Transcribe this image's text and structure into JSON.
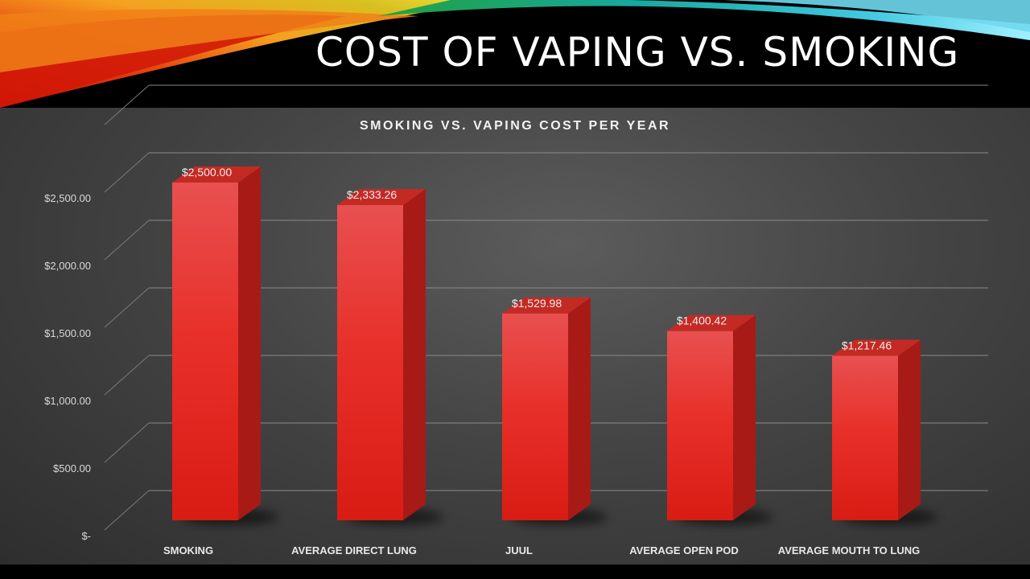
{
  "slide": {
    "title": "COST OF VAPING VS. SMOKING"
  },
  "colors": {
    "bar_front": "#e8302a",
    "bar_side": "#a81a16",
    "bar_top": "#c42a24",
    "panel": "#444444"
  },
  "chart_data": {
    "type": "bar",
    "title": "SMOKING VS. VAPING COST PER YEAR",
    "categories": [
      "SMOKING",
      "AVERAGE DIRECT LUNG",
      "JUUL",
      "AVERAGE OPEN POD",
      "AVERAGE MOUTH TO LUNG"
    ],
    "values": [
      2500.0,
      2333.26,
      1529.98,
      1400.42,
      1217.46
    ],
    "data_labels": [
      "$2,500.00",
      "$2,333.26",
      "$1,529.98",
      "$1,400.42",
      "$1,217.46"
    ],
    "y_ticks": [
      0,
      500,
      1000,
      1500,
      2000,
      2500
    ],
    "y_tick_labels": [
      "$-",
      "$500.00",
      "$1,000.00",
      "$1,500.00",
      "$2,000.00",
      "$2,500.00"
    ],
    "ylim": [
      0,
      3000
    ],
    "xlabel": "",
    "ylabel": "",
    "grid": true,
    "style": "3d-column"
  }
}
